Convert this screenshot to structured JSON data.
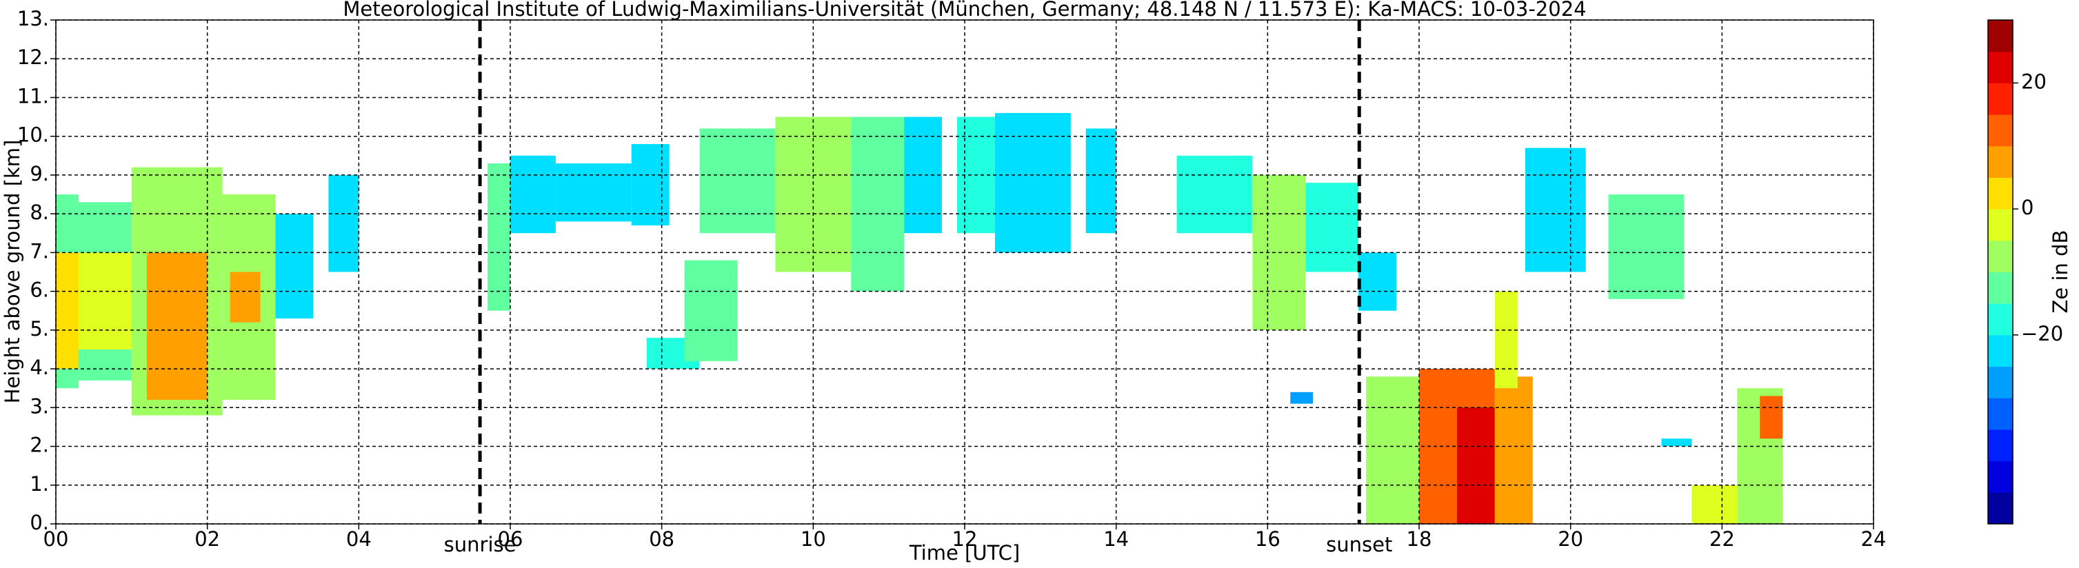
{
  "chart_data": {
    "type": "heatmap",
    "title": "Meteorological Institute of Ludwig-Maximilians-Universität (München, Germany; 48.148 N / 11.573 E):    Ka-MACS: 10-03-2024",
    "x_label": "Time [UTC]",
    "y_label": "Height above ground [km]",
    "colorbar_label": "Ze in dB",
    "xlim": [
      0,
      24
    ],
    "ylim": [
      0,
      13
    ],
    "zlim": [
      -50,
      30
    ],
    "grid": true,
    "xticks": [
      {
        "value": 0,
        "label": "00"
      },
      {
        "value": 2,
        "label": "02"
      },
      {
        "value": 4,
        "label": "04"
      },
      {
        "value": 6,
        "label": "06"
      },
      {
        "value": 8,
        "label": "08"
      },
      {
        "value": 10,
        "label": "10"
      },
      {
        "value": 12,
        "label": "12"
      },
      {
        "value": 14,
        "label": "14"
      },
      {
        "value": 16,
        "label": "16"
      },
      {
        "value": 18,
        "label": "18"
      },
      {
        "value": 20,
        "label": "20"
      },
      {
        "value": 22,
        "label": "22"
      },
      {
        "value": 24,
        "label": "24"
      }
    ],
    "yticks": [
      {
        "value": 0,
        "label": "0."
      },
      {
        "value": 1,
        "label": "1."
      },
      {
        "value": 2,
        "label": "2."
      },
      {
        "value": 3,
        "label": "3."
      },
      {
        "value": 4,
        "label": "4."
      },
      {
        "value": 5,
        "label": "5."
      },
      {
        "value": 6,
        "label": "6."
      },
      {
        "value": 7,
        "label": "7."
      },
      {
        "value": 8,
        "label": "8."
      },
      {
        "value": 9,
        "label": "9."
      },
      {
        "value": 10,
        "label": "10."
      },
      {
        "value": 11,
        "label": "11."
      },
      {
        "value": 12,
        "label": "12."
      },
      {
        "value": 13,
        "label": "13."
      }
    ],
    "zticks": [
      {
        "value": -20,
        "label": "−20"
      },
      0,
      20
    ],
    "markers": [
      {
        "label": "sunrise",
        "x": 5.6
      },
      {
        "label": "sunset",
        "x": 17.21
      }
    ],
    "cells": [
      {
        "t": [
          0,
          0.3
        ],
        "h": [
          3.5,
          8.5
        ],
        "ze": -15
      },
      {
        "t": [
          0,
          0.3
        ],
        "h": [
          4,
          7
        ],
        "ze": 0
      },
      {
        "t": [
          0.3,
          1.0
        ],
        "h": [
          3.7,
          8.3
        ],
        "ze": -15
      },
      {
        "t": [
          0.3,
          1.0
        ],
        "h": [
          4.5,
          7
        ],
        "ze": -2
      },
      {
        "t": [
          1.0,
          2.2
        ],
        "h": [
          2.8,
          9.2
        ],
        "ze": -10
      },
      {
        "t": [
          1.2,
          2.0
        ],
        "h": [
          3.2,
          7
        ],
        "ze": 8
      },
      {
        "t": [
          2.2,
          2.9
        ],
        "h": [
          3.2,
          8.5
        ],
        "ze": -8
      },
      {
        "t": [
          2.3,
          2.7
        ],
        "h": [
          5.2,
          6.5
        ],
        "ze": 5
      },
      {
        "t": [
          2.9,
          3.4
        ],
        "h": [
          5.3,
          8
        ],
        "ze": -25
      },
      {
        "t": [
          3.6,
          4.0
        ],
        "h": [
          6.5,
          9
        ],
        "ze": -25
      },
      {
        "t": [
          5.7,
          6.0
        ],
        "h": [
          5.5,
          9.3
        ],
        "ze": -15
      },
      {
        "t": [
          6.0,
          6.6
        ],
        "h": [
          7.5,
          9.5
        ],
        "ze": -25
      },
      {
        "t": [
          6.6,
          7.6
        ],
        "h": [
          7.8,
          9.3
        ],
        "ze": -25
      },
      {
        "t": [
          7.6,
          8.1
        ],
        "h": [
          7.7,
          9.8
        ],
        "ze": -22
      },
      {
        "t": [
          7.8,
          8.5
        ],
        "h": [
          4.0,
          4.8
        ],
        "ze": -20
      },
      {
        "t": [
          8.3,
          9.0
        ],
        "h": [
          4.2,
          6.8
        ],
        "ze": -15
      },
      {
        "t": [
          8.5,
          9.5
        ],
        "h": [
          7.5,
          10.2
        ],
        "ze": -15
      },
      {
        "t": [
          9.5,
          10.5
        ],
        "h": [
          6.5,
          10.5
        ],
        "ze": -10
      },
      {
        "t": [
          10.5,
          11.2
        ],
        "h": [
          6.0,
          10.5
        ],
        "ze": -15
      },
      {
        "t": [
          11.2,
          11.7
        ],
        "h": [
          7.5,
          10.5
        ],
        "ze": -22
      },
      {
        "t": [
          11.9,
          12.4
        ],
        "h": [
          7.5,
          10.5
        ],
        "ze": -18
      },
      {
        "t": [
          12.4,
          13.4
        ],
        "h": [
          7.0,
          10.6
        ],
        "ze": -22
      },
      {
        "t": [
          13.6,
          14.0
        ],
        "h": [
          7.5,
          10.2
        ],
        "ze": -25
      },
      {
        "t": [
          14.8,
          15.8
        ],
        "h": [
          7.5,
          9.5
        ],
        "ze": -18
      },
      {
        "t": [
          15.8,
          16.5
        ],
        "h": [
          5.0,
          9.0
        ],
        "ze": -8
      },
      {
        "t": [
          16.5,
          17.2
        ],
        "h": [
          6.5,
          8.8
        ],
        "ze": -18
      },
      {
        "t": [
          17.2,
          17.7
        ],
        "h": [
          5.5,
          7
        ],
        "ze": -25
      },
      {
        "t": [
          16.3,
          16.6
        ],
        "h": [
          3.1,
          3.4
        ],
        "ze": -30
      },
      {
        "t": [
          17.3,
          18.0
        ],
        "h": [
          0,
          3.8
        ],
        "ze": -10
      },
      {
        "t": [
          18.0,
          19.0
        ],
        "h": [
          0,
          4.0
        ],
        "ze": 10
      },
      {
        "t": [
          18.5,
          19.0
        ],
        "h": [
          0,
          3
        ],
        "ze": 20
      },
      {
        "t": [
          19.0,
          19.5
        ],
        "h": [
          0,
          3.8
        ],
        "ze": 5
      },
      {
        "t": [
          19.0,
          19.3
        ],
        "h": [
          3.5,
          6
        ],
        "ze": -5
      },
      {
        "t": [
          19.4,
          20.2
        ],
        "h": [
          6.5,
          9.7
        ],
        "ze": -22
      },
      {
        "t": [
          20.5,
          21.5
        ],
        "h": [
          5.8,
          8.5
        ],
        "ze": -12
      },
      {
        "t": [
          21.2,
          21.6
        ],
        "h": [
          2.0,
          2.2
        ],
        "ze": -25
      },
      {
        "t": [
          21.6,
          22.2
        ],
        "h": [
          0,
          1.0
        ],
        "ze": -5
      },
      {
        "t": [
          22.2,
          22.8
        ],
        "h": [
          0,
          3.5
        ],
        "ze": -10
      },
      {
        "t": [
          22.5,
          22.8
        ],
        "h": [
          2.2,
          3.3
        ],
        "ze": 10
      }
    ]
  }
}
